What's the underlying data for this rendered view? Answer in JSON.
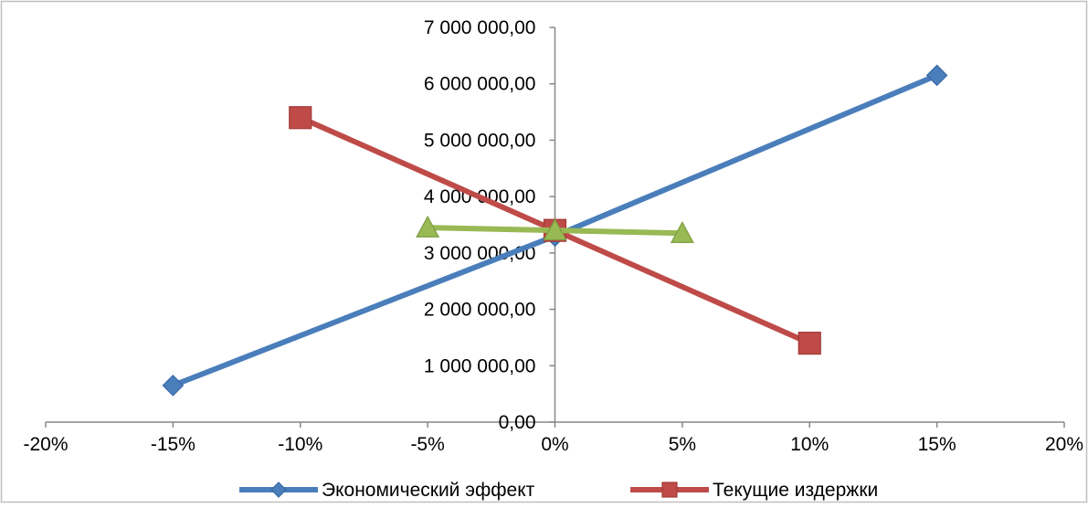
{
  "chart_data": {
    "type": "scatter",
    "title": "",
    "xlabel": "",
    "ylabel": "",
    "xlim": [
      -0.2,
      0.2
    ],
    "ylim": [
      0,
      7000000
    ],
    "x_ticks": [
      -0.2,
      -0.15,
      -0.1,
      -0.05,
      0,
      0.05,
      0.1,
      0.15,
      0.2
    ],
    "x_tick_labels": [
      "-20%",
      "-15%",
      "-10%",
      "-5%",
      "0%",
      "5%",
      "10%",
      "15%",
      "20%"
    ],
    "y_ticks": [
      0,
      1000000,
      2000000,
      3000000,
      4000000,
      5000000,
      6000000,
      7000000
    ],
    "y_tick_labels": [
      "0,00",
      "1 000 000,00",
      "2 000 000,00",
      "3 000 000,00",
      "4 000 000,00",
      "5 000 000,00",
      "6 000 000,00",
      "7 000 000,00"
    ],
    "grid": false,
    "legend_position": "bottom",
    "series": [
      {
        "name": "Экономический эффект",
        "color": "#4a7ebb",
        "marker": "diamond",
        "show_in_legend": true,
        "points": [
          [
            -0.15,
            650000
          ],
          [
            0,
            3300000
          ],
          [
            0.15,
            6150000
          ]
        ]
      },
      {
        "name": "Текущие издержки",
        "color": "#be4b48",
        "marker": "square",
        "show_in_legend": true,
        "points": [
          [
            -0.1,
            5400000
          ],
          [
            0,
            3400000
          ],
          [
            0.1,
            1400000
          ]
        ]
      },
      {
        "color": "#98b954",
        "marker": "triangle",
        "show_in_legend": false,
        "points": [
          [
            -0.05,
            3450000
          ],
          [
            0,
            3400000
          ],
          [
            0.05,
            3350000
          ]
        ]
      }
    ]
  }
}
